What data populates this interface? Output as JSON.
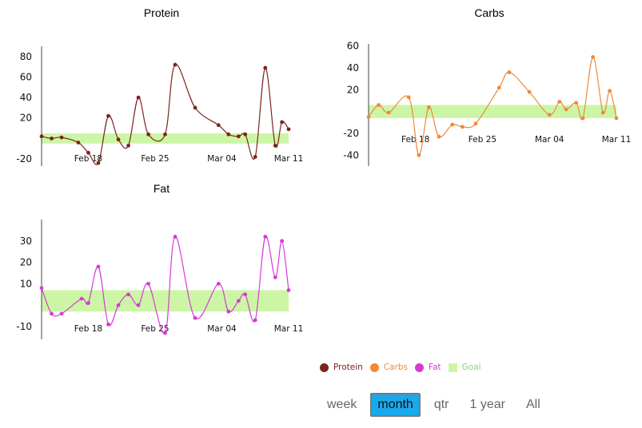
{
  "chart_data": [
    {
      "type": "line",
      "title": "Protein",
      "color": "#7b241c",
      "goal_color": "#ccf6a6",
      "goal": [
        -5,
        5
      ],
      "ylim": [
        -27,
        90
      ],
      "yticks": [
        80,
        60,
        40,
        20,
        -20
      ],
      "xlim": [
        0,
        37
      ],
      "xticks": [
        {
          "x": 7,
          "label": "Feb 18"
        },
        {
          "x": 17,
          "label": "Feb 25"
        },
        {
          "x": 27,
          "label": "Mar 04"
        },
        {
          "x": 37,
          "label": "Mar 11"
        }
      ],
      "series": [
        {
          "values": [
            [
              0,
              2
            ],
            [
              1.5,
              0
            ],
            [
              3,
              1
            ],
            [
              5.5,
              -4
            ],
            [
              7,
              -14
            ],
            [
              8.5,
              -24
            ],
            [
              10,
              22
            ],
            [
              11.5,
              -1
            ],
            [
              13,
              -7
            ],
            [
              14.5,
              40
            ],
            [
              16,
              4
            ],
            [
              18.5,
              4
            ],
            [
              20,
              72
            ],
            [
              23,
              30
            ],
            [
              26.5,
              13
            ],
            [
              28,
              4
            ],
            [
              29.5,
              2
            ],
            [
              30.5,
              4
            ],
            [
              32,
              -18
            ],
            [
              33.5,
              69
            ],
            [
              35,
              -7
            ],
            [
              36,
              16
            ],
            [
              37,
              9
            ]
          ]
        }
      ]
    },
    {
      "type": "line",
      "title": "Carbs",
      "color": "#f0883a",
      "goal_color": "#ccf6a6",
      "goal": [
        -6,
        6
      ],
      "ylim": [
        -50,
        62
      ],
      "yticks": [
        60,
        40,
        20,
        -20,
        -40
      ],
      "xlim": [
        0,
        37
      ],
      "xticks": [
        {
          "x": 7,
          "label": "Feb 18"
        },
        {
          "x": 17,
          "label": "Feb 25"
        },
        {
          "x": 27,
          "label": "Mar 04"
        },
        {
          "x": 37,
          "label": "Mar 11"
        }
      ],
      "series": [
        {
          "values": [
            [
              0,
              -5
            ],
            [
              1.5,
              6
            ],
            [
              3,
              -1
            ],
            [
              6,
              13
            ],
            [
              7.5,
              -40
            ],
            [
              9,
              4
            ],
            [
              10.5,
              -23
            ],
            [
              12.5,
              -12
            ],
            [
              14,
              -14
            ],
            [
              16,
              -11
            ],
            [
              19.5,
              22
            ],
            [
              21,
              36
            ],
            [
              24,
              18
            ],
            [
              27,
              -3
            ],
            [
              28.5,
              9
            ],
            [
              29.5,
              2
            ],
            [
              31,
              8
            ],
            [
              32,
              -6
            ],
            [
              33.5,
              50
            ],
            [
              35,
              -1
            ],
            [
              36,
              19
            ],
            [
              37,
              -6
            ]
          ]
        }
      ]
    },
    {
      "type": "line",
      "title": "Fat",
      "color": "#d63ad6",
      "goal_color": "#ccf6a6",
      "goal": [
        -3,
        7
      ],
      "ylim": [
        -16,
        40
      ],
      "yticks": [
        30,
        20,
        10,
        -10
      ],
      "xlim": [
        0,
        37
      ],
      "xticks": [
        {
          "x": 7,
          "label": "Feb 18"
        },
        {
          "x": 17,
          "label": "Feb 25"
        },
        {
          "x": 27,
          "label": "Mar 04"
        },
        {
          "x": 37,
          "label": "Mar 11"
        }
      ],
      "series": [
        {
          "values": [
            [
              0,
              8
            ],
            [
              1.5,
              -4
            ],
            [
              3,
              -4
            ],
            [
              6,
              3
            ],
            [
              7,
              1
            ],
            [
              8.5,
              18
            ],
            [
              10,
              -9
            ],
            [
              11.5,
              0
            ],
            [
              13,
              5
            ],
            [
              14.5,
              0
            ],
            [
              16,
              10
            ],
            [
              18.5,
              -13
            ],
            [
              20,
              32
            ],
            [
              23,
              -6
            ],
            [
              26.5,
              10
            ],
            [
              28,
              -3
            ],
            [
              29.5,
              2
            ],
            [
              30.5,
              5
            ],
            [
              32,
              -7
            ],
            [
              33.5,
              32
            ],
            [
              35,
              13
            ],
            [
              36,
              30
            ],
            [
              37,
              7
            ]
          ]
        }
      ]
    }
  ],
  "legend": {
    "items": [
      {
        "label": "Protein",
        "color": "#7b241c",
        "shape": "circle"
      },
      {
        "label": "Carbs",
        "color": "#f0883a",
        "shape": "circle"
      },
      {
        "label": "Fat",
        "color": "#d63ad6",
        "shape": "circle"
      },
      {
        "label": "Goal",
        "color": "#ccf6a6",
        "shape": "square"
      }
    ]
  },
  "range": {
    "options": [
      "week",
      "month",
      "qtr",
      "1 year",
      "All"
    ],
    "selected": "month"
  }
}
